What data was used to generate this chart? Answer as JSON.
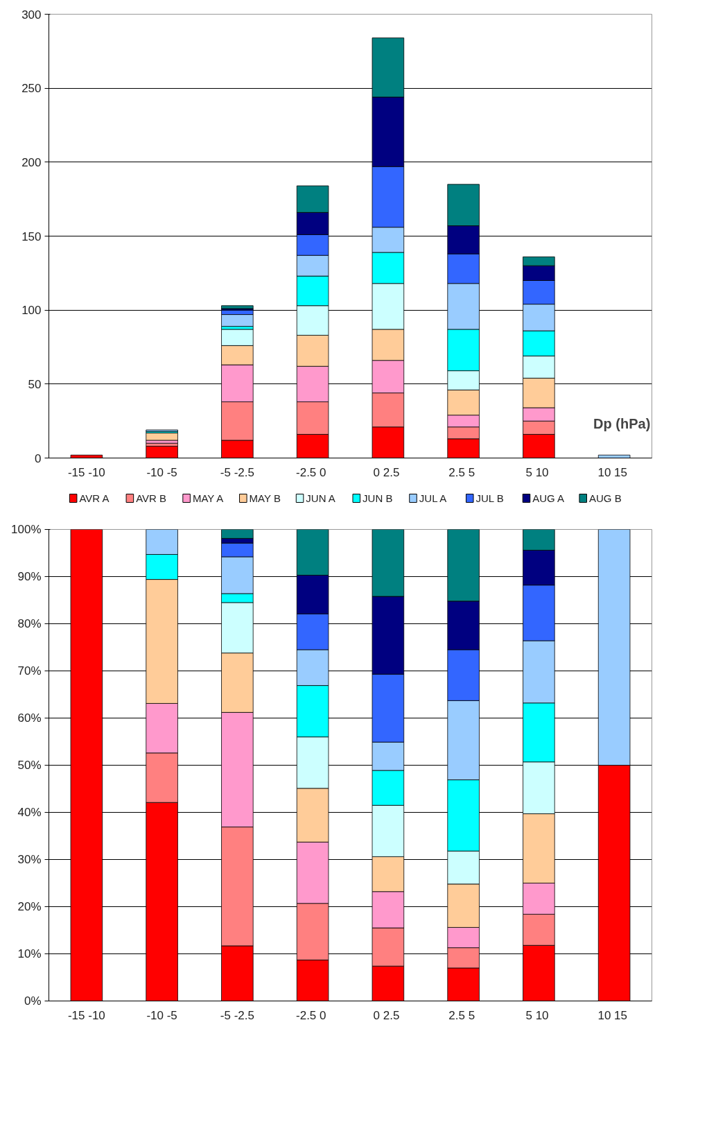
{
  "chart_data": [
    {
      "type": "bar",
      "stacked": true,
      "xlabel": "Dp (hPa)",
      "categories": [
        "-15 -10",
        "-10 -5",
        "-5 -2.5",
        "-2.5  0",
        "0  2.5",
        "2.5  5",
        "5  10",
        "10  15"
      ],
      "series": [
        {
          "name": "AVR A",
          "color": "#ff0000",
          "values": [
            2,
            8,
            12,
            16,
            21,
            13,
            16,
            0
          ]
        },
        {
          "name": "AVR B",
          "color": "#ff8080",
          "values": [
            0,
            2,
            26,
            22,
            23,
            8,
            9,
            0
          ]
        },
        {
          "name": "MAY A",
          "color": "#ff99cc",
          "values": [
            0,
            2,
            25,
            24,
            22,
            8,
            9,
            0
          ]
        },
        {
          "name": "MAY B",
          "color": "#ffcc99",
          "values": [
            0,
            5,
            13,
            21,
            21,
            17,
            20,
            0
          ]
        },
        {
          "name": "JUN A",
          "color": "#ccffff",
          "values": [
            0,
            0,
            11,
            20,
            31,
            13,
            15,
            0
          ]
        },
        {
          "name": "JUN B",
          "color": "#00ffff",
          "values": [
            0,
            1,
            2,
            20,
            21,
            28,
            17,
            0
          ]
        },
        {
          "name": "JUL A",
          "color": "#99ccff",
          "values": [
            0,
            1,
            8,
            14,
            17,
            31,
            18,
            2
          ]
        },
        {
          "name": "JUL B",
          "color": "#3366ff",
          "values": [
            0,
            0,
            3,
            14,
            41,
            20,
            16,
            0
          ]
        },
        {
          "name": "AUG A",
          "color": "#000080",
          "values": [
            0,
            0,
            1,
            15,
            47,
            19,
            10,
            0
          ]
        },
        {
          "name": "AUG B",
          "color": "#008080",
          "values": [
            0,
            0,
            2,
            18,
            40,
            28,
            6,
            0
          ]
        }
      ],
      "ylim": [
        0,
        300
      ],
      "yticks": [
        0,
        50,
        100,
        150,
        200,
        250,
        300
      ],
      "grid": "y",
      "legend": "bottom"
    },
    {
      "type": "bar",
      "stacked": true,
      "categories": [
        "-15 -10",
        "-10 -5",
        "-5 -2.5",
        "-2.5  0",
        "0  2.5",
        "2.5  5",
        "5  10",
        "10  15"
      ],
      "series": [
        {
          "color": "#ff0000",
          "values": [
            100,
            42.1,
            11.7,
            8.7,
            7.4,
            7.0,
            11.8,
            50
          ]
        },
        {
          "color": "#ff8080",
          "values": [
            0,
            10.5,
            25.2,
            12.0,
            8.1,
            4.3,
            6.6,
            0
          ]
        },
        {
          "color": "#ff99cc",
          "values": [
            0,
            10.5,
            24.3,
            13.0,
            7.7,
            4.3,
            6.6,
            0
          ]
        },
        {
          "color": "#ffcc99",
          "values": [
            0,
            26.3,
            12.6,
            11.4,
            7.4,
            9.2,
            14.7,
            0
          ]
        },
        {
          "color": "#ccffff",
          "values": [
            0,
            0,
            10.7,
            10.9,
            10.9,
            7.0,
            11.0,
            0
          ]
        },
        {
          "color": "#00ffff",
          "values": [
            0,
            5.3,
            1.9,
            10.9,
            7.4,
            15.1,
            12.5,
            0
          ]
        },
        {
          "color": "#99ccff",
          "values": [
            0,
            5.3,
            7.8,
            7.6,
            6.0,
            16.8,
            13.2,
            50
          ]
        },
        {
          "color": "#3366ff",
          "values": [
            0,
            0,
            2.9,
            7.6,
            14.4,
            10.8,
            11.8,
            0
          ]
        },
        {
          "color": "#000080",
          "values": [
            0,
            0,
            1.0,
            8.2,
            16.5,
            10.3,
            7.4,
            0
          ]
        },
        {
          "color": "#008080",
          "values": [
            0,
            0,
            1.9,
            9.7,
            14.2,
            15.2,
            4.4,
            0
          ]
        }
      ],
      "ylim": [
        0,
        100
      ],
      "yticks": [
        {
          "value": 0,
          "label": "0%"
        },
        {
          "value": 10,
          "label": "10%"
        },
        {
          "value": 20,
          "label": "20%"
        },
        {
          "value": 30,
          "label": "30%"
        },
        {
          "value": 40,
          "label": "40%"
        },
        {
          "value": 50,
          "label": "50%"
        },
        {
          "value": 60,
          "label": "60%"
        },
        {
          "value": 70,
          "label": "70%"
        },
        {
          "value": 80,
          "label": "80%"
        },
        {
          "value": 90,
          "label": "90%"
        },
        {
          "value": 100,
          "label": "100%"
        }
      ],
      "grid": "y"
    }
  ]
}
